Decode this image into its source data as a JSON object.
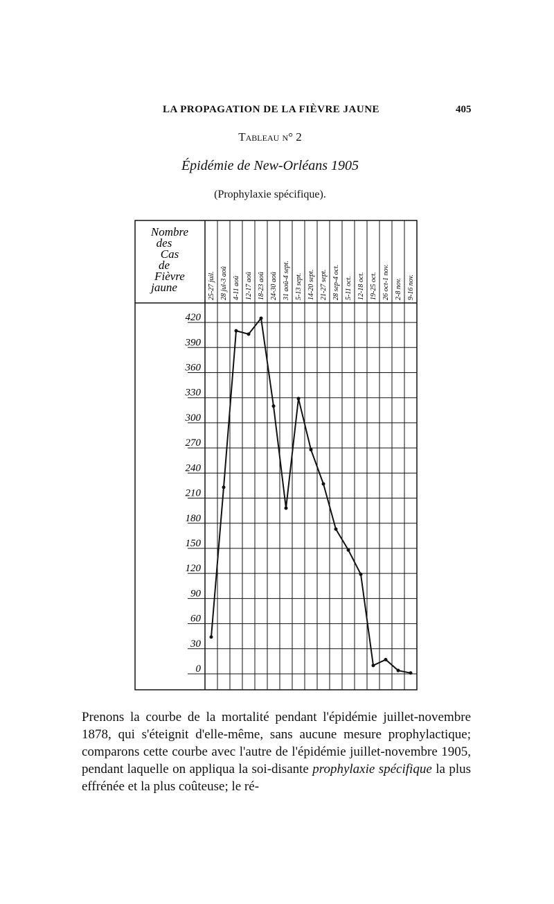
{
  "header": {
    "running_title": "LA PROPAGATION DE LA FIÈVRE JAUNE",
    "page_number": "405",
    "table_title": "Tableau n° 2",
    "subtitle": "Épidémie de New-Orléans 1905",
    "note": "(Prophylaxie spécifique)."
  },
  "chart_data": {
    "type": "line",
    "y_label": [
      "Nombre",
      "des",
      "Cas",
      "de",
      "Fièvre",
      "jaune"
    ],
    "categories": [
      "25-27 juil.",
      "28 jul-3 aoû",
      "4-11 aoû",
      "12-17 aoû",
      "18-23 aoû",
      "24-30 aoû",
      "31 aoû-4 sept.",
      "5-13 sept.",
      "14-20 sept.",
      "21-27 sept.",
      "28 sep-4 oct.",
      "5-11 oct.",
      "12-18 oct.",
      "19-25 oct.",
      "26 oct-1 nov.",
      "2-8 nov.",
      "9-16 nov."
    ],
    "values": [
      44,
      223,
      410,
      406,
      425,
      320,
      198,
      329,
      268,
      227,
      173,
      148,
      119,
      10,
      17,
      4,
      1
    ],
    "color": "#111111",
    "ylim": [
      0,
      435
    ],
    "yticks": [
      0,
      30,
      60,
      90,
      120,
      150,
      180,
      210,
      240,
      270,
      300,
      330,
      360,
      390,
      420
    ],
    "grid": true
  },
  "paragraph": [
    "Prenons la courbe de la mortalité pendant l'épidémie juillet-novembre 1878, qui s'éteignit d'elle-même, sans aucune mesure prophylactique; comparons cette courbe avec l'autre de l'épidémie juillet-novembre 1905, pendant laquelle on appliqua la soi-disante",
    "prophylaxie spécifique",
    "la plus effrénée et la plus coûteuse; le ré-"
  ]
}
